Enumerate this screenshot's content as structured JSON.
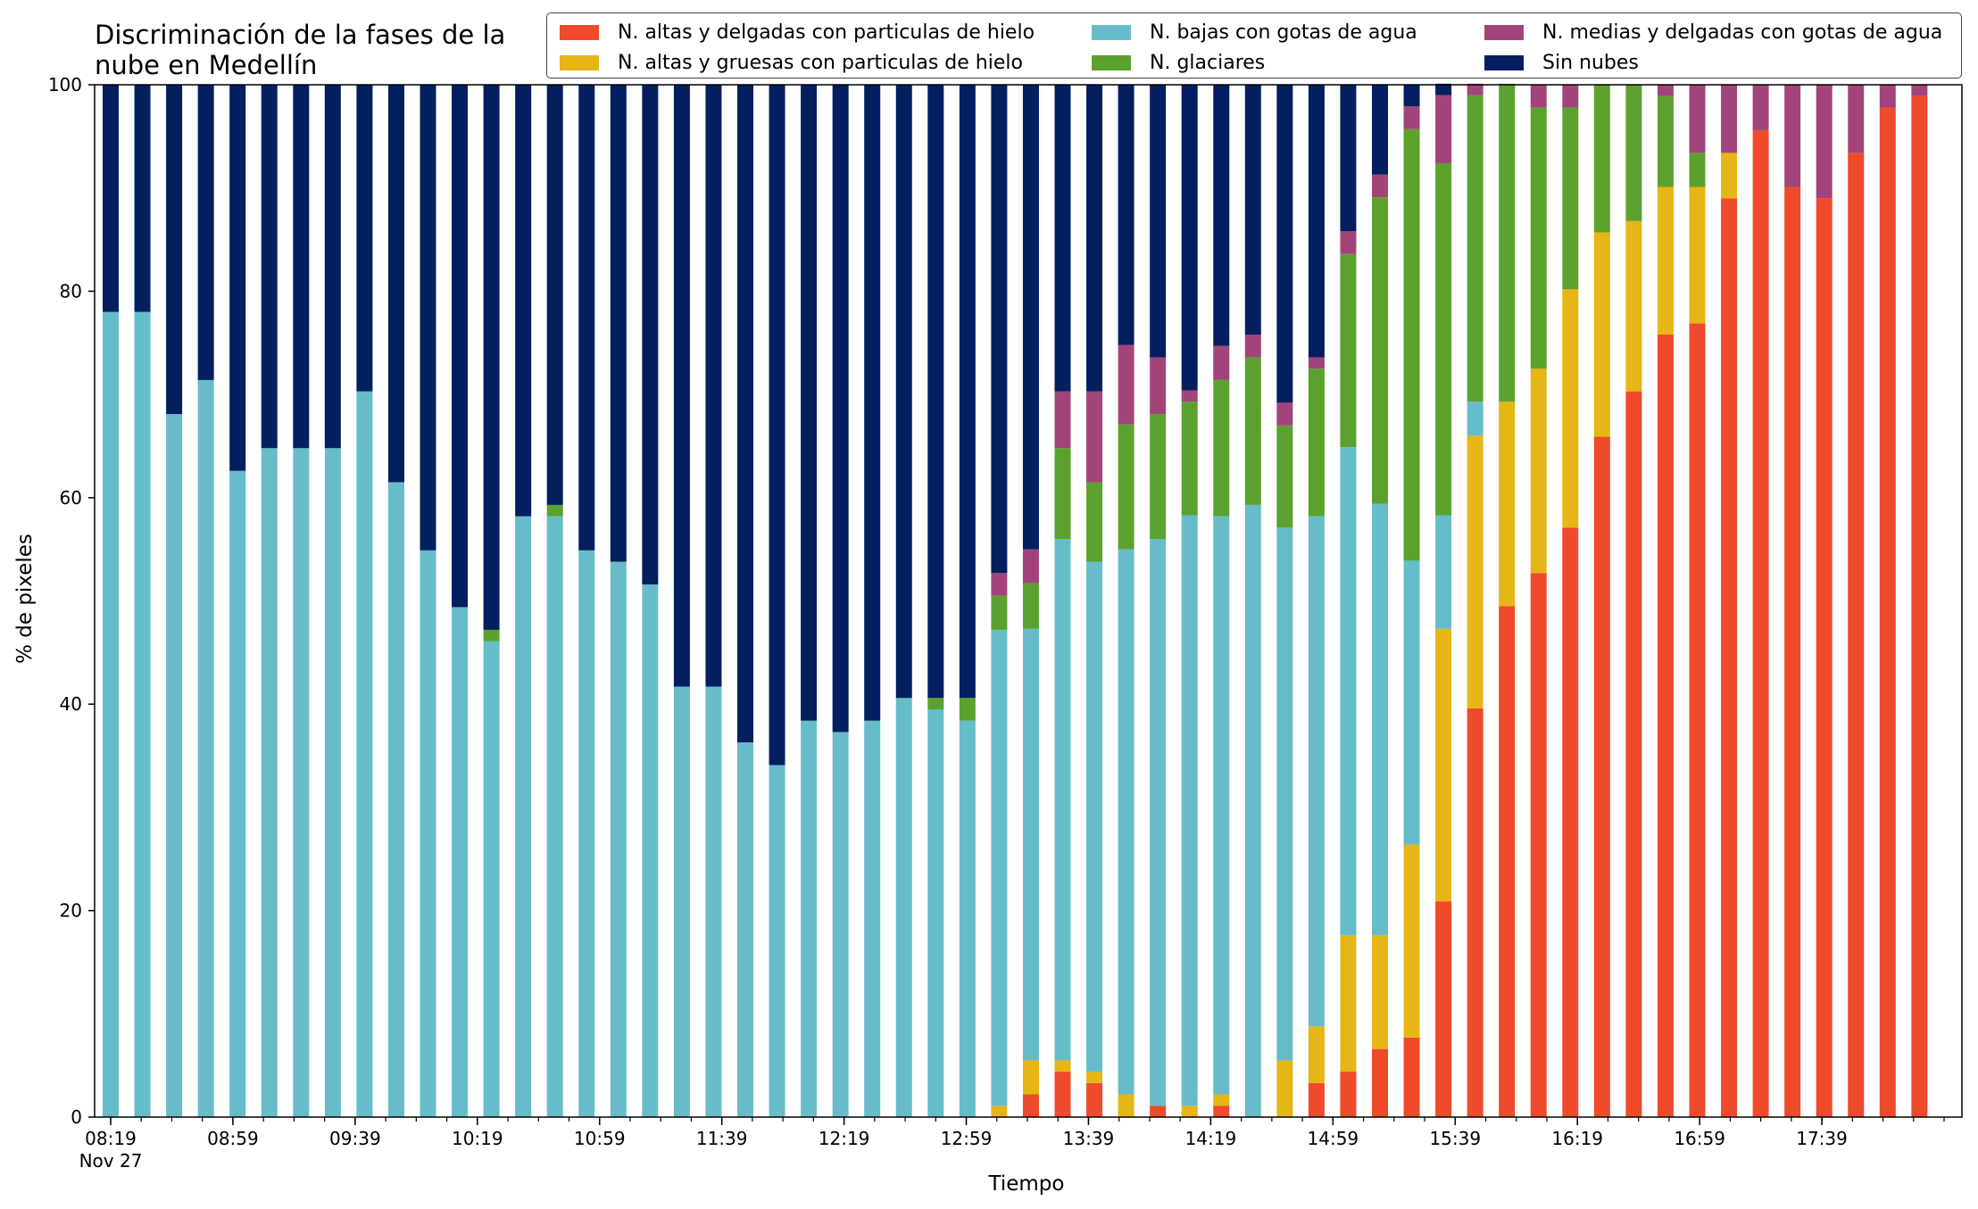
{
  "chart_data": {
    "type": "bar",
    "stacked": true,
    "title_lines": [
      "Discriminación de la fases de la",
      "nube en Medellín"
    ],
    "xlabel": "Tiempo",
    "ylabel": "% de pixeles",
    "ylim": [
      0,
      100
    ],
    "yticks": [
      0,
      20,
      40,
      60,
      80,
      100
    ],
    "grid": false,
    "legend_position": "top-right",
    "x_tick_labels": [
      "08:19",
      "08:59",
      "09:39",
      "10:19",
      "10:59",
      "11:39",
      "12:19",
      "12:59",
      "13:39",
      "14:19",
      "14:59",
      "15:39",
      "16:19",
      "16:59",
      "17:39"
    ],
    "x_tick_sublabel": "Nov 27",
    "categories": [
      "08:19",
      "08:29",
      "08:39",
      "08:49",
      "08:59",
      "09:09",
      "09:19",
      "09:29",
      "09:39",
      "09:49",
      "09:59",
      "10:09",
      "10:19",
      "10:29",
      "10:39",
      "10:49",
      "10:59",
      "11:09",
      "11:19",
      "11:29",
      "11:39",
      "11:49",
      "11:59",
      "12:09",
      "12:19",
      "12:29",
      "12:39",
      "12:49",
      "12:59",
      "13:09",
      "13:19",
      "13:29",
      "13:39",
      "13:49",
      "13:59",
      "14:09",
      "14:19",
      "14:29",
      "14:39",
      "14:49",
      "14:59",
      "15:09",
      "15:19",
      "15:29",
      "15:39",
      "15:49",
      "15:59",
      "16:09",
      "16:19",
      "16:29",
      "16:39",
      "16:49",
      "16:59",
      "17:09",
      "17:19",
      "17:29",
      "17:39",
      "17:49"
    ],
    "series": [
      {
        "name": "N. altas y delgadas con particulas de hielo",
        "color": "#ee4a2b",
        "values": [
          0,
          0,
          0,
          0,
          0,
          0,
          0,
          0,
          0,
          0,
          0,
          0,
          0,
          0,
          0,
          0,
          0,
          0,
          0,
          0,
          0,
          0,
          0,
          0,
          0,
          0,
          0,
          0,
          0,
          2.2,
          4.4,
          3.3,
          0,
          1.1,
          0,
          1.1,
          0,
          0,
          3.3,
          4.4,
          6.6,
          7.7,
          20.9,
          39.6,
          49.5,
          52.7,
          57.1,
          65.9,
          70.3,
          75.8,
          76.9,
          89.0,
          95.6,
          90.1,
          89.0,
          93.4,
          97.8,
          98.9
        ]
      },
      {
        "name": "N. altas y gruesas con particulas de hielo",
        "color": "#e6b516",
        "values": [
          0,
          0,
          0,
          0,
          0,
          0,
          0,
          0,
          0,
          0,
          0,
          0,
          0,
          0,
          0,
          0,
          0,
          0,
          0,
          0,
          0,
          0,
          0,
          0,
          0,
          0,
          0,
          0,
          1.1,
          3.3,
          1.1,
          1.1,
          2.2,
          0,
          1.1,
          1.1,
          0,
          5.5,
          5.5,
          13.2,
          11.0,
          18.7,
          26.4,
          26.4,
          19.8,
          19.8,
          23.1,
          19.8,
          16.5,
          14.3,
          13.2,
          4.4,
          0,
          0,
          0,
          0,
          0,
          0
        ]
      },
      {
        "name": "N. bajas con gotas de agua",
        "color": "#66bdc9",
        "values": [
          78.0,
          78.0,
          68.1,
          71.4,
          62.6,
          64.8,
          64.8,
          64.8,
          70.3,
          61.5,
          54.9,
          49.4,
          46.1,
          58.2,
          58.2,
          54.9,
          53.8,
          51.6,
          41.7,
          41.7,
          36.3,
          34.1,
          38.4,
          37.3,
          38.4,
          40.6,
          39.5,
          38.4,
          46.1,
          41.8,
          50.5,
          49.4,
          52.8,
          54.9,
          57.2,
          56.0,
          59.3,
          51.6,
          49.4,
          47.3,
          41.8,
          27.5,
          11.0,
          3.3,
          0,
          0,
          0,
          0,
          0,
          0,
          0,
          0,
          0,
          0,
          0,
          0,
          0,
          0
        ]
      },
      {
        "name": "N. glaciares",
        "color": "#5aa22d",
        "values": [
          0,
          0,
          0,
          0,
          0,
          0,
          0,
          0,
          0,
          0,
          0,
          0,
          1.1,
          0,
          1.1,
          0,
          0,
          0,
          0,
          0,
          0,
          0,
          0,
          0,
          0,
          0,
          1.1,
          2.2,
          3.3,
          4.4,
          8.8,
          7.7,
          12.1,
          12.1,
          11.0,
          13.2,
          14.3,
          9.9,
          14.3,
          18.7,
          29.7,
          41.8,
          34.1,
          29.7,
          30.8,
          25.3,
          17.6,
          14.3,
          13.2,
          8.8,
          3.3,
          0,
          0,
          0,
          0,
          0,
          0,
          0
        ]
      },
      {
        "name": "N. medias y delgadas con gotas de agua",
        "color": "#a2447a",
        "values": [
          0,
          0,
          0,
          0,
          0,
          0,
          0,
          0,
          0,
          0,
          0,
          0,
          0,
          0,
          0,
          0,
          0,
          0,
          0,
          0,
          0,
          0,
          0,
          0,
          0,
          0,
          0,
          0,
          2.2,
          3.3,
          5.5,
          8.8,
          7.7,
          5.5,
          1.1,
          3.3,
          2.2,
          2.2,
          1.1,
          2.2,
          2.2,
          2.2,
          6.6,
          1.1,
          0,
          2.2,
          2.2,
          0,
          0,
          1.1,
          6.6,
          6.6,
          4.4,
          9.9,
          11.0,
          6.6,
          2.2,
          1.1
        ]
      },
      {
        "name": "Sin nubes",
        "color": "#031f5f",
        "values": [
          22.0,
          22.0,
          31.9,
          28.6,
          37.4,
          35.2,
          35.2,
          35.2,
          29.7,
          38.5,
          45.1,
          50.6,
          52.8,
          41.8,
          40.7,
          45.1,
          46.2,
          48.4,
          58.3,
          58.3,
          63.7,
          65.9,
          61.6,
          62.7,
          61.6,
          59.4,
          59.4,
          59.4,
          47.3,
          45.0,
          29.7,
          29.7,
          25.2,
          26.4,
          29.6,
          25.3,
          24.2,
          30.8,
          26.4,
          14.2,
          8.7,
          2.1,
          1.1,
          0,
          0,
          0,
          0,
          0,
          0,
          0,
          0,
          0,
          0,
          0,
          0,
          0,
          0,
          0
        ]
      }
    ]
  }
}
